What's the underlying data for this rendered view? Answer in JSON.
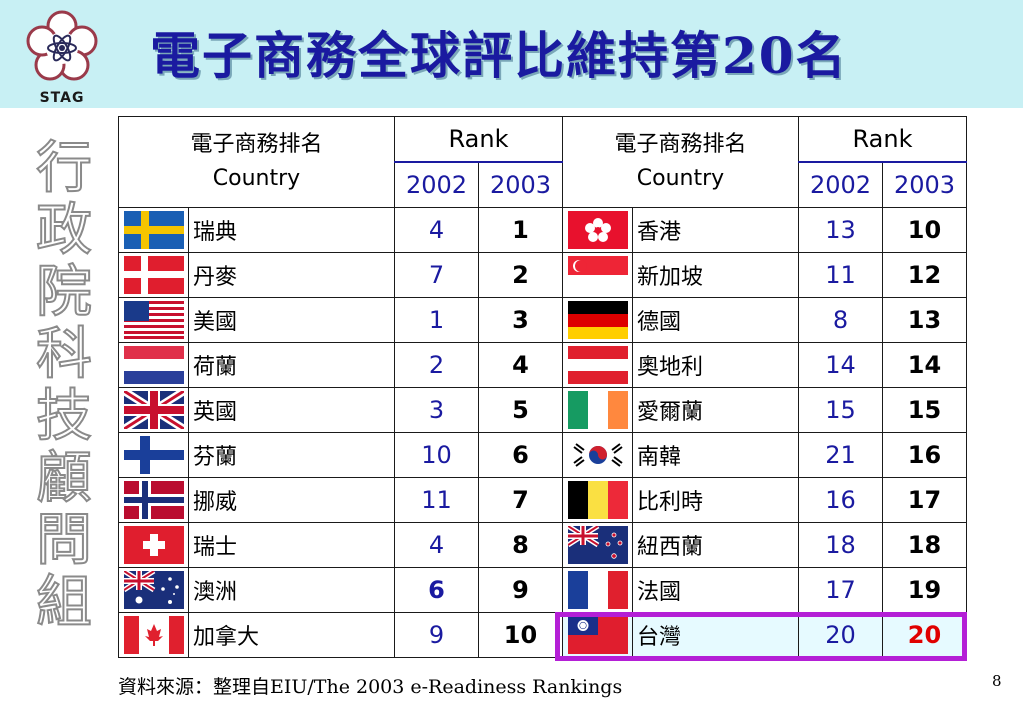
{
  "title": "電子商務全球評比維持第20名",
  "logo_text": "STAG",
  "vertical_text": [
    "行",
    "政",
    "院",
    "科",
    "技",
    "顧",
    "問",
    "組"
  ],
  "table": {
    "header_country_cn": "電子商務排名",
    "header_country_en": "Country",
    "header_rank": "Rank",
    "year_2002": "2002",
    "year_2003": "2003",
    "left": [
      {
        "flag": "sweden-flag",
        "name": "瑞典",
        "r2002": "4",
        "r2003": "1"
      },
      {
        "flag": "denmark-flag",
        "name": "丹麥",
        "r2002": "7",
        "r2003": "2"
      },
      {
        "flag": "usa-flag",
        "name": "美國",
        "r2002": "1",
        "r2003": "3"
      },
      {
        "flag": "netherlands-flag",
        "name": "荷蘭",
        "r2002": "2",
        "r2003": "4"
      },
      {
        "flag": "uk-flag",
        "name": "英國",
        "r2002": "3",
        "r2003": "5"
      },
      {
        "flag": "finland-flag",
        "name": "芬蘭",
        "r2002": "10",
        "r2003": "6"
      },
      {
        "flag": "norway-flag",
        "name": "挪威",
        "r2002": "11",
        "r2003": "7"
      },
      {
        "flag": "switzerland-flag",
        "name": "瑞士",
        "r2002": "4",
        "r2003": "8"
      },
      {
        "flag": "australia-flag",
        "name": "澳洲",
        "r2002": "6",
        "r2003": "9"
      },
      {
        "flag": "canada-flag",
        "name": "加拿大",
        "r2002": "9",
        "r2003": "10"
      }
    ],
    "right": [
      {
        "flag": "hongkong-flag",
        "name": "香港",
        "r2002": "13",
        "r2003": "10"
      },
      {
        "flag": "singapore-flag",
        "name": "新加坡",
        "r2002": "11",
        "r2003": "12"
      },
      {
        "flag": "germany-flag",
        "name": "德國",
        "r2002": "8",
        "r2003": "13"
      },
      {
        "flag": "austria-flag",
        "name": "奧地利",
        "r2002": "14",
        "r2003": "14"
      },
      {
        "flag": "ireland-flag",
        "name": "愛爾蘭",
        "r2002": "15",
        "r2003": "15"
      },
      {
        "flag": "korea-flag",
        "name": "南韓",
        "r2002": "21",
        "r2003": "16"
      },
      {
        "flag": "belgium-flag",
        "name": "比利時",
        "r2002": "16",
        "r2003": "17"
      },
      {
        "flag": "newzealand-flag",
        "name": "紐西蘭",
        "r2002": "18",
        "r2003": "18"
      },
      {
        "flag": "france-flag",
        "name": "法國",
        "r2002": "17",
        "r2003": "19"
      },
      {
        "flag": "taiwan-flag",
        "name": "台灣",
        "r2002": "20",
        "r2003": "20"
      }
    ]
  },
  "colors": {
    "header_bg": "#c8f0f4",
    "title": "#1a1aa0",
    "rank_blue": "#1a1aa0",
    "highlight_border": "#b41fd6",
    "taiwan_rank": "#e00000"
  },
  "source": "資料來源：整理自EIU/The 2003 e-Readiness Rankings",
  "page_number": "8"
}
